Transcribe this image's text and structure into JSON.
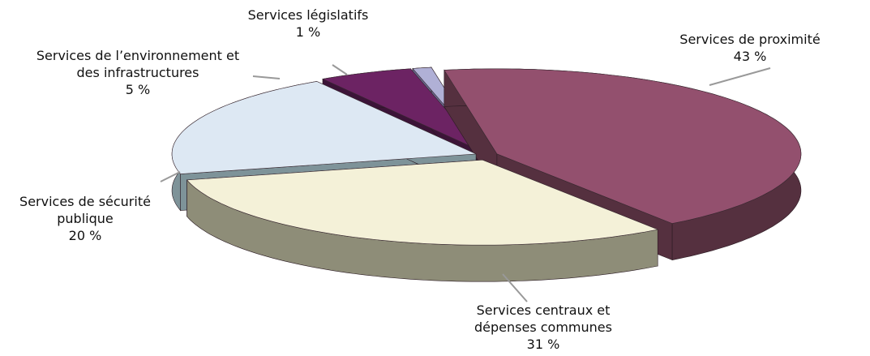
{
  "chart_data": {
    "type": "pie",
    "categories": [
      "Services de proximité",
      "Services centraux et dépenses communes",
      "Services de sécurité publique",
      "Services de l’environnement et des infrastructures",
      "Services législatifs"
    ],
    "values": [
      43,
      31,
      20,
      5,
      1
    ],
    "value_labels": [
      "43 %",
      "31 %",
      "20 %",
      "5 %",
      "1 %"
    ],
    "colors": [
      "#93506e",
      "#f4f1d8",
      "#dde8f3",
      "#6c2363",
      "#b0b0d6"
    ],
    "side_colors": [
      "#55303f",
      "#8e8d78",
      "#7e9399",
      "#3c1438",
      "#6a6a90"
    ]
  }
}
